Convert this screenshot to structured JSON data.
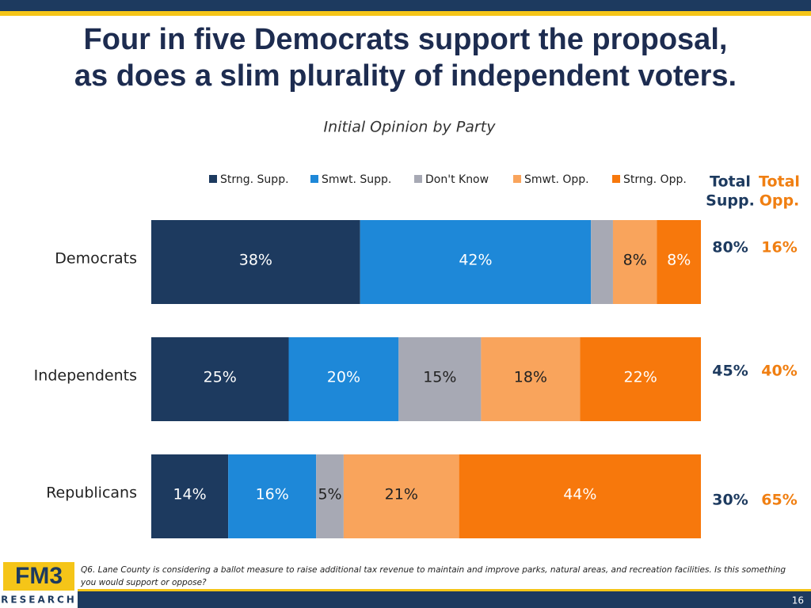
{
  "chart_data": {
    "type": "stacked-bar-horizontal",
    "title": [
      "Four in five Democrats support the proposal,",
      "as does a slim plurality of independent voters."
    ],
    "subtitle": "Initial Opinion by Party",
    "categories": [
      "Democrats",
      "Independents",
      "Republicans"
    ],
    "xlim": [
      0,
      100
    ],
    "series": [
      {
        "name": "Strng. Supp.",
        "color": "#1d3a5f",
        "label_color": "#ffffff",
        "values": [
          38,
          25,
          14
        ],
        "value_labels": [
          "38%",
          "25%",
          "14%"
        ]
      },
      {
        "name": "Smwt. Supp.",
        "color": "#1e88d8",
        "label_color": "#ffffff",
        "values": [
          42,
          20,
          16
        ],
        "value_labels": [
          "42%",
          "20%",
          "16%"
        ]
      },
      {
        "name": "Don't Know",
        "color": "#a7a9b4",
        "label_color": "#222222",
        "values": [
          4,
          15,
          5
        ],
        "value_labels": [
          null,
          "15%",
          "5%"
        ]
      },
      {
        "name": "Smwt. Opp.",
        "color": "#f9a45c",
        "label_color": "#222222",
        "values": [
          8,
          18,
          21
        ],
        "value_labels": [
          "8%",
          "18%",
          "21%"
        ]
      },
      {
        "name": "Strng. Opp.",
        "color": "#f7780c",
        "label_color": "#ffffff",
        "values": [
          8,
          22,
          44
        ],
        "value_labels": [
          "8%",
          "22%",
          "44%"
        ]
      }
    ],
    "totals": [
      {
        "name": [
          "Total",
          "Supp."
        ],
        "color": "#1d3a5f",
        "values": [
          80,
          45,
          30
        ],
        "value_labels": [
          "80%",
          "45%",
          "30%"
        ]
      },
      {
        "name": [
          "Total",
          "Opp."
        ],
        "color": "#f07f12",
        "values": [
          16,
          40,
          65
        ],
        "value_labels": [
          "16%",
          "40%",
          "65%"
        ]
      }
    ],
    "legend": "top"
  },
  "footer": {
    "note": "Q6. Lane County is considering a ballot measure to raise additional tax revenue to maintain and improve parks, natural areas, and recreation facilities. Is this something you would support or oppose?",
    "logo": {
      "text": "FM3",
      "subtext": "RESEARCH"
    },
    "page_number": "16"
  }
}
